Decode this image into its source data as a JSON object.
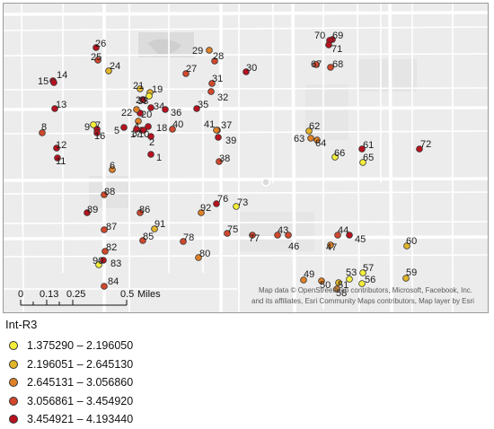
{
  "map": {
    "scale_bar": {
      "ticks": [
        "0",
        "0.13",
        "0.25",
        "0.5"
      ],
      "unit": "Miles"
    },
    "attribution_line1": "Map data © OpenStreetMap contributors, Microsoft, Facebook, Inc.",
    "attribution_line2": "and its affiliates, Esri Community Maps contributors, Map layer by Esri"
  },
  "legend": {
    "title": "Int-R3",
    "classes": [
      {
        "range": "1.375290 – 2.196050",
        "color": "#f5ee3a"
      },
      {
        "range": "2.196051 – 2.645130",
        "color": "#e2b52a"
      },
      {
        "range": "2.645131 – 3.056860",
        "color": "#de8128"
      },
      {
        "range": "3.056861 – 3.454920",
        "color": "#d1482c"
      },
      {
        "range": "3.454921 – 4.193440",
        "color": "#b8121f"
      }
    ]
  },
  "points": [
    {
      "label": "1",
      "class": 4
    },
    {
      "label": "2",
      "class": 4
    },
    {
      "label": "3",
      "class": 4
    },
    {
      "label": "4",
      "class": 2
    },
    {
      "label": "5",
      "class": 4
    },
    {
      "label": "6",
      "class": 2
    },
    {
      "label": "7",
      "class": 4
    },
    {
      "label": "8",
      "class": 3
    },
    {
      "label": "9",
      "class": 0
    },
    {
      "label": "10",
      "class": 4
    },
    {
      "label": "11",
      "class": 4
    },
    {
      "label": "12",
      "class": 4
    },
    {
      "label": "13",
      "class": 4
    },
    {
      "label": "14",
      "class": 4
    },
    {
      "label": "15",
      "class": 4
    },
    {
      "label": "16",
      "class": 4
    },
    {
      "label": "17",
      "class": 4
    },
    {
      "label": "18",
      "class": 4
    },
    {
      "label": "19",
      "class": 1
    },
    {
      "label": "20",
      "class": 4
    },
    {
      "label": "21",
      "class": 1
    },
    {
      "label": "22",
      "class": 2
    },
    {
      "label": "23",
      "class": 4
    },
    {
      "label": "24",
      "class": 1
    },
    {
      "label": "25",
      "class": 3
    },
    {
      "label": "26",
      "class": 4
    },
    {
      "label": "27",
      "class": 3
    },
    {
      "label": "28",
      "class": 3
    },
    {
      "label": "29",
      "class": 2
    },
    {
      "label": "30",
      "class": 4
    },
    {
      "label": "31",
      "class": 3
    },
    {
      "label": "32",
      "class": 3
    },
    {
      "label": "33",
      "class": 0
    },
    {
      "label": "34",
      "class": 4
    },
    {
      "label": "35",
      "class": 4
    },
    {
      "label": "36",
      "class": 4
    },
    {
      "label": "37",
      "class": 3
    },
    {
      "label": "38",
      "class": 3
    },
    {
      "label": "39",
      "class": 4
    },
    {
      "label": "40",
      "class": 3
    },
    {
      "label": "41",
      "class": 2
    },
    {
      "label": "43",
      "class": 3
    },
    {
      "label": "44",
      "class": 3
    },
    {
      "label": "45",
      "class": 4
    },
    {
      "label": "46",
      "class": 3
    },
    {
      "label": "47",
      "class": 2
    },
    {
      "label": "49",
      "class": 2
    },
    {
      "label": "50",
      "class": 2
    },
    {
      "label": "51",
      "class": 1
    },
    {
      "label": "53",
      "class": 0
    },
    {
      "label": "56",
      "class": 0
    },
    {
      "label": "57",
      "class": 0
    },
    {
      "label": "58",
      "class": 2
    },
    {
      "label": "59",
      "class": 1
    },
    {
      "label": "60",
      "class": 1
    },
    {
      "label": "61",
      "class": 4
    },
    {
      "label": "62",
      "class": 1
    },
    {
      "label": "63",
      "class": 2
    },
    {
      "label": "64",
      "class": 2
    },
    {
      "label": "65",
      "class": 0
    },
    {
      "label": "66",
      "class": 0
    },
    {
      "label": "67",
      "class": 3
    },
    {
      "label": "68",
      "class": 3
    },
    {
      "label": "69",
      "class": 4
    },
    {
      "label": "70",
      "class": 4
    },
    {
      "label": "71",
      "class": 4
    },
    {
      "label": "72",
      "class": 4
    },
    {
      "label": "73",
      "class": 0
    },
    {
      "label": "75",
      "class": 3
    },
    {
      "label": "76",
      "class": 4
    },
    {
      "label": "77",
      "class": 3
    },
    {
      "label": "78",
      "class": 3
    },
    {
      "label": "80",
      "class": 2
    },
    {
      "label": "82",
      "class": 3
    },
    {
      "label": "83",
      "class": 4
    },
    {
      "label": "84",
      "class": 3
    },
    {
      "label": "85",
      "class": 3
    },
    {
      "label": "86",
      "class": 3
    },
    {
      "label": "87",
      "class": 3
    },
    {
      "label": "88",
      "class": 3
    },
    {
      "label": "89",
      "class": 4
    },
    {
      "label": "90",
      "class": 0
    },
    {
      "label": "91",
      "class": 1
    },
    {
      "label": "92",
      "class": 2
    }
  ]
}
